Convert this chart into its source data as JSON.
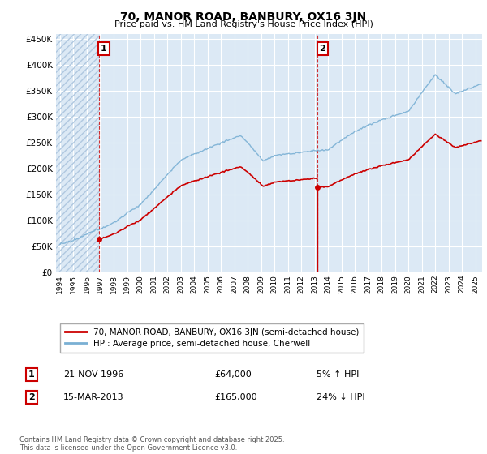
{
  "title": "70, MANOR ROAD, BANBURY, OX16 3JN",
  "subtitle": "Price paid vs. HM Land Registry's House Price Index (HPI)",
  "legend_label1": "70, MANOR ROAD, BANBURY, OX16 3JN (semi-detached house)",
  "legend_label2": "HPI: Average price, semi-detached house, Cherwell",
  "annotation1_label": "1",
  "annotation1_date": "21-NOV-1996",
  "annotation1_price": "£64,000",
  "annotation1_hpi": "5% ↑ HPI",
  "annotation2_label": "2",
  "annotation2_date": "15-MAR-2013",
  "annotation2_price": "£165,000",
  "annotation2_hpi": "24% ↓ HPI",
  "footer": "Contains HM Land Registry data © Crown copyright and database right 2025.\nThis data is licensed under the Open Government Licence v3.0.",
  "ylim": [
    0,
    460000
  ],
  "yticks": [
    0,
    50000,
    100000,
    150000,
    200000,
    250000,
    300000,
    350000,
    400000,
    450000
  ],
  "line_color_red": "#cc0000",
  "line_color_blue": "#7ab0d4",
  "annotation_color": "#cc0000",
  "bg_color": "#ffffff",
  "plot_bg_color": "#dce9f5",
  "grid_color": "#ffffff",
  "sale1_year": 1996.88,
  "sale2_year": 2013.21,
  "sale1_price": 64000,
  "sale2_price": 165000,
  "xlim_left": 1993.7,
  "xlim_right": 2025.5
}
